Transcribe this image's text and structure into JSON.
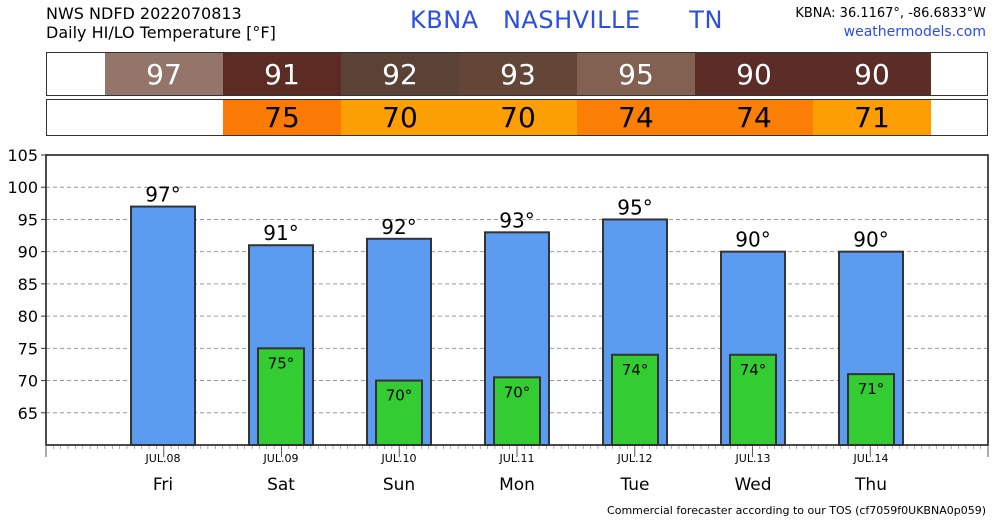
{
  "header": {
    "line1": "NWS NDFD 2022070813",
    "line2": "Daily HI/LO Temperature [°F]",
    "station": "KBNA   NASHVILLE      TN",
    "coords": "KBNA: 36.1167°, -86.6833°W",
    "site": "weathermodels.com"
  },
  "hi_strip": {
    "cells": [
      {
        "value": "97",
        "color": "#94756a"
      },
      {
        "value": "91",
        "color": "#5c2c24"
      },
      {
        "value": "92",
        "color": "#5a4236"
      },
      {
        "value": "93",
        "color": "#644638"
      },
      {
        "value": "95",
        "color": "#826052"
      },
      {
        "value": "90",
        "color": "#5c2c26"
      },
      {
        "value": "90",
        "color": "#5c2c26"
      }
    ]
  },
  "lo_strip": {
    "cells": [
      {
        "value": "75",
        "color": "#fb7a06"
      },
      {
        "value": "70",
        "color": "#fc9f04"
      },
      {
        "value": "70",
        "color": "#fc9f04"
      },
      {
        "value": "74",
        "color": "#fb7e06"
      },
      {
        "value": "74",
        "color": "#fb7e06"
      },
      {
        "value": "71",
        "color": "#fc9d04"
      }
    ]
  },
  "chart_data": {
    "type": "bar",
    "categories": [
      "Fri",
      "Sat",
      "Sun",
      "Mon",
      "Tue",
      "Wed",
      "Thu"
    ],
    "dates": [
      "JUL.08",
      "JUL.09",
      "JUL.10",
      "JUL.11",
      "JUL.12",
      "JUL.13",
      "JUL.14"
    ],
    "series": [
      {
        "values": [
          97,
          91,
          92,
          93,
          95,
          90,
          90
        ],
        "labels": [
          "97°",
          "91°",
          "92°",
          "93°",
          "95°",
          "90°",
          "90°"
        ],
        "color": "#5b9bf0"
      },
      {
        "values": [
          null,
          75,
          70,
          70.5,
          74,
          74,
          71
        ],
        "labels": [
          "",
          "75°",
          "70°",
          "70°",
          "74°",
          "74°",
          "71°"
        ],
        "color": "#33cc33"
      }
    ],
    "ylim": [
      60,
      105
    ],
    "yticks": [
      "65",
      "70",
      "75",
      "80",
      "85",
      "90",
      "95",
      "100",
      "105"
    ],
    "grid": true
  },
  "footer": "Commercial forecaster according to our TOS (cf7059f0UKBNA0p059)"
}
